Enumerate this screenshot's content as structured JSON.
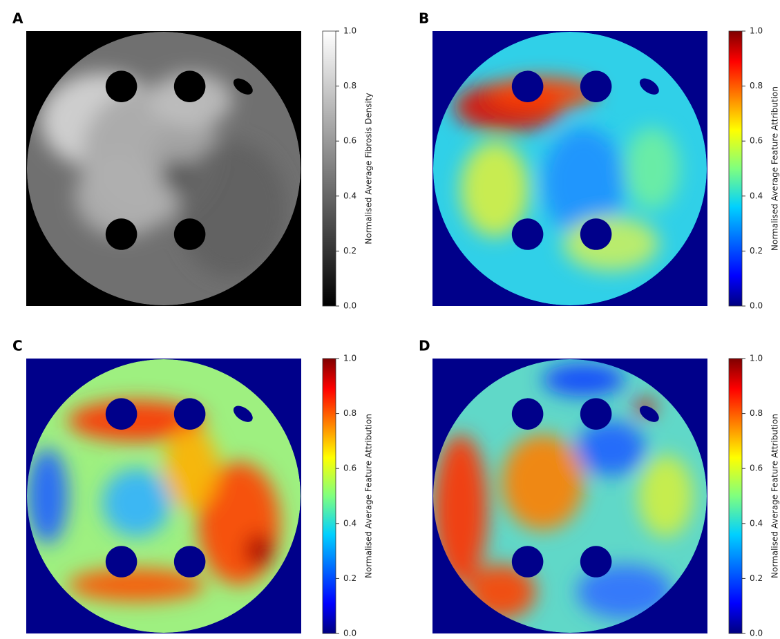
{
  "chart_data": [
    {
      "type": "heatmap",
      "panel": "A",
      "colorbar_label": "Normalised Average Fibrosis Density",
      "colormap": "gray",
      "clim": [
        0,
        1
      ],
      "cticks": [
        {
          "value": 0,
          "label": "0.0"
        },
        0.2,
        0.4,
        0.6,
        0.8,
        {
          "value": 1,
          "label": "1.0"
        }
      ]
    },
    {
      "type": "heatmap",
      "panel": "B",
      "colorbar_label": "Normalised Average Feature Attribution",
      "colormap": "jet",
      "clim": [
        0,
        1
      ],
      "cticks": [
        {
          "value": 0,
          "label": "0.0"
        },
        0.2,
        0.4,
        0.6,
        0.8,
        {
          "value": 1,
          "label": "1.0"
        }
      ]
    },
    {
      "type": "heatmap",
      "panel": "C",
      "colorbar_label": "Normalised Average Feature Attribution",
      "colormap": "jet",
      "clim": [
        0,
        1
      ],
      "cticks": [
        {
          "value": 0,
          "label": "0.0"
        },
        0.2,
        0.4,
        0.6,
        0.8,
        {
          "value": 1,
          "label": "1.0"
        }
      ]
    },
    {
      "type": "heatmap",
      "panel": "D",
      "colorbar_label": "Normalised Average Feature Attribution",
      "colormap": "jet",
      "clim": [
        0,
        1
      ],
      "cticks": [
        {
          "value": 0,
          "label": "0.0"
        },
        0.2,
        0.4,
        0.6,
        0.8,
        {
          "value": 1,
          "label": "1.0"
        }
      ]
    }
  ]
}
